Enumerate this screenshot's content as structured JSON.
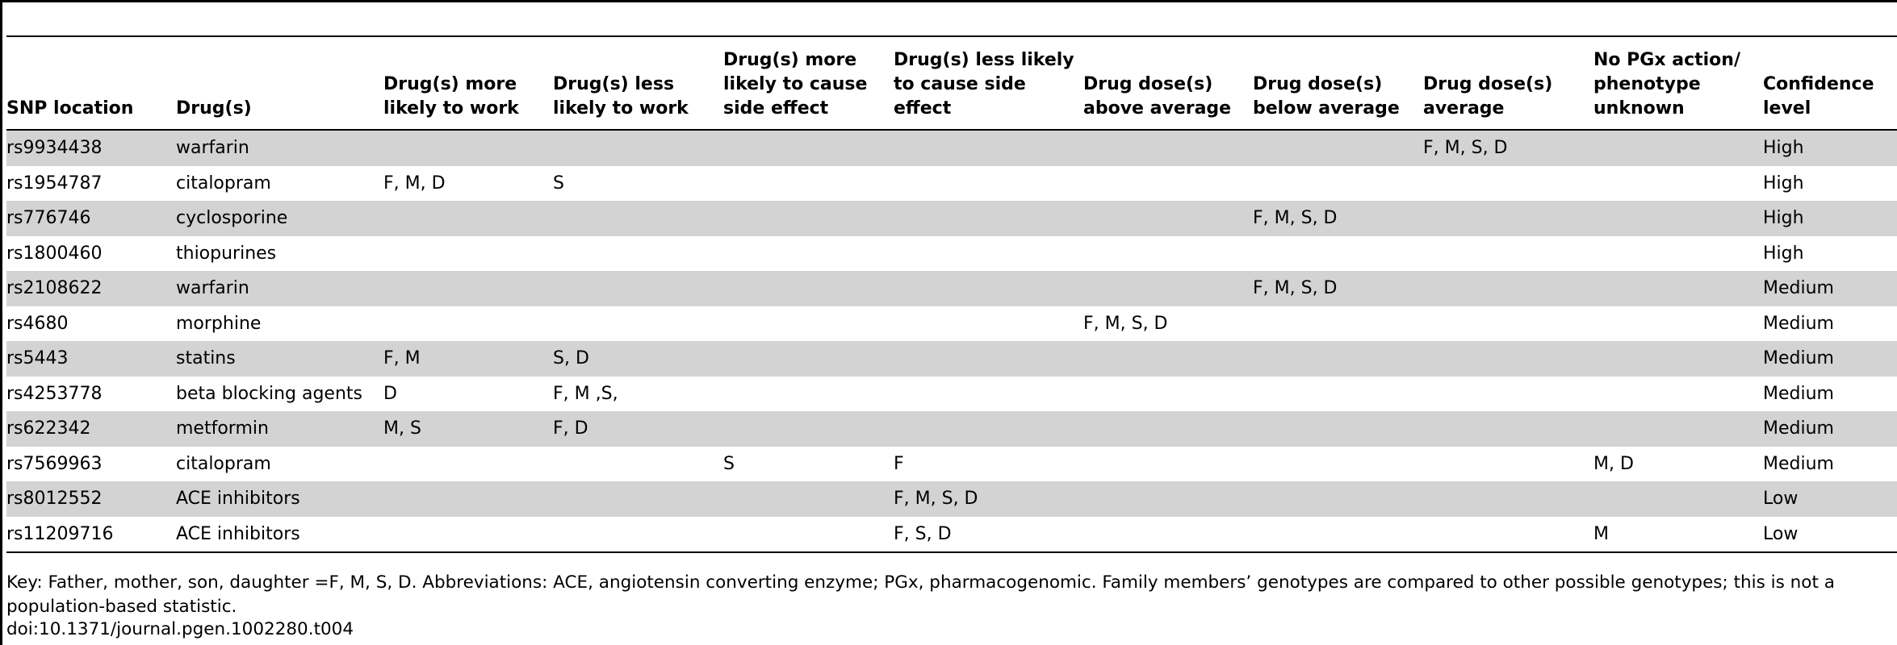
{
  "table": {
    "headers": [
      "SNP location",
      "Drug(s)",
      "Drug(s) more likely to work",
      "Drug(s) less likely to work",
      "Drug(s) more likely to cause side effect",
      "Drug(s) less likely to cause side effect",
      "Drug dose(s) above average",
      "Drug dose(s) below average",
      "Drug dose(s) average",
      "No PGx action/ phenotype unknown",
      "Confidence level"
    ],
    "rows": [
      [
        "rs9934438",
        "warfarin",
        "",
        "",
        "",
        "",
        "",
        "",
        "F, M, S, D",
        "",
        "High"
      ],
      [
        "rs1954787",
        "citalopram",
        "F, M, D",
        "S",
        "",
        "",
        "",
        "",
        "",
        "",
        "High"
      ],
      [
        "rs776746",
        "cyclosporine",
        "",
        "",
        "",
        "",
        "",
        "F, M, S, D",
        "",
        "",
        "High"
      ],
      [
        "rs1800460",
        "thiopurines",
        "",
        "",
        "",
        "",
        "",
        "",
        "",
        "",
        "High"
      ],
      [
        "rs2108622",
        "warfarin",
        "",
        "",
        "",
        "",
        "",
        "F, M, S, D",
        "",
        "",
        "Medium"
      ],
      [
        "rs4680",
        "morphine",
        "",
        "",
        "",
        "",
        "F, M, S, D",
        "",
        "",
        "",
        "Medium"
      ],
      [
        "rs5443",
        "statins",
        "F, M",
        "S, D",
        "",
        "",
        "",
        "",
        "",
        "",
        "Medium"
      ],
      [
        "rs4253778",
        "beta blocking agents",
        "D",
        "F, M ,S,",
        "",
        "",
        "",
        "",
        "",
        "",
        "Medium"
      ],
      [
        "rs622342",
        "metformin",
        "M, S",
        "F, D",
        "",
        "",
        "",
        "",
        "",
        "",
        "Medium"
      ],
      [
        "rs7569963",
        "citalopram",
        "",
        "",
        "S",
        "F",
        "",
        "",
        "",
        "M, D",
        "Medium"
      ],
      [
        "rs8012552",
        "ACE inhibitors",
        "",
        "",
        "",
        "F, M, S, D",
        "",
        "",
        "",
        "",
        "Low"
      ],
      [
        "rs11209716",
        "ACE inhibitors",
        "",
        "",
        "",
        "F, S, D",
        "",
        "",
        "",
        "M",
        "Low"
      ]
    ]
  },
  "footnote": "Key: Father, mother, son, daughter =F, M, S, D. Abbreviations: ACE, angiotensin converting enzyme; PGx, pharmacogenomic. Family members’ genotypes are compared to other possible genotypes; this is not a population-based statistic.",
  "doi": "doi:10.1371/journal.pgen.1002280.t004",
  "colors": {
    "row_shade": "#d3d3d3",
    "rule": "#000000",
    "text": "#000000"
  }
}
